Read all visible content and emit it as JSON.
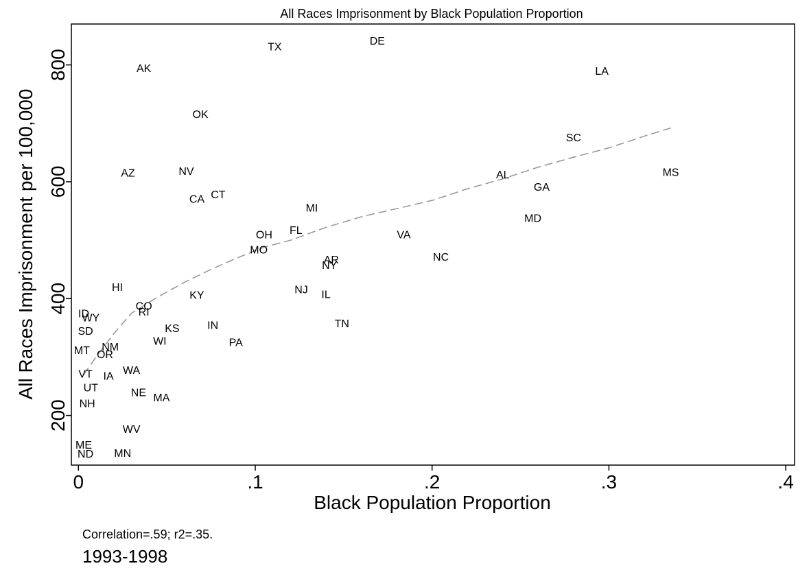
{
  "chart_data": {
    "type": "scatter",
    "title": "All Races Imprisonment by Black Population Proportion",
    "xlabel": "Black Population Proportion",
    "ylabel": "All Races Imprisonment per 100,000",
    "xlim": [
      -0.004,
      0.405
    ],
    "ylim": [
      115,
      870
    ],
    "x_ticks": [
      {
        "value": 0,
        "label": "0"
      },
      {
        "value": 0.1,
        "label": ".1"
      },
      {
        "value": 0.2,
        "label": ".2"
      },
      {
        "value": 0.3,
        "label": ".3"
      },
      {
        "value": 0.4,
        "label": ".4"
      }
    ],
    "y_ticks": [
      {
        "value": 200,
        "label": "200"
      },
      {
        "value": 400,
        "label": "400"
      },
      {
        "value": 600,
        "label": "600"
      },
      {
        "value": 800,
        "label": "800"
      }
    ],
    "grid": false,
    "marker_style": "state abbreviation labels",
    "points": [
      {
        "label": "TX",
        "x": 0.111,
        "y": 832
      },
      {
        "label": "DE",
        "x": 0.169,
        "y": 842
      },
      {
        "label": "AK",
        "x": 0.037,
        "y": 795
      },
      {
        "label": "LA",
        "x": 0.296,
        "y": 790
      },
      {
        "label": "OK",
        "x": 0.069,
        "y": 716
      },
      {
        "label": "SC",
        "x": 0.28,
        "y": 676
      },
      {
        "label": "AZ",
        "x": 0.028,
        "y": 616
      },
      {
        "label": "NV",
        "x": 0.061,
        "y": 619
      },
      {
        "label": "MS",
        "x": 0.335,
        "y": 617
      },
      {
        "label": "AL",
        "x": 0.24,
        "y": 613
      },
      {
        "label": "GA",
        "x": 0.262,
        "y": 592
      },
      {
        "label": "CT",
        "x": 0.079,
        "y": 579
      },
      {
        "label": "CA",
        "x": 0.067,
        "y": 571
      },
      {
        "label": "MI",
        "x": 0.132,
        "y": 556
      },
      {
        "label": "MD",
        "x": 0.257,
        "y": 538
      },
      {
        "label": "FL",
        "x": 0.123,
        "y": 518
      },
      {
        "label": "VA",
        "x": 0.184,
        "y": 510
      },
      {
        "label": "OH",
        "x": 0.105,
        "y": 510
      },
      {
        "label": "MO",
        "x": 0.102,
        "y": 484
      },
      {
        "label": "NC",
        "x": 0.205,
        "y": 472
      },
      {
        "label": "AR",
        "x": 0.143,
        "y": 467
      },
      {
        "label": "NY",
        "x": 0.142,
        "y": 458
      },
      {
        "label": "HI",
        "x": 0.022,
        "y": 420
      },
      {
        "label": "NJ",
        "x": 0.126,
        "y": 416
      },
      {
        "label": "KY",
        "x": 0.067,
        "y": 407
      },
      {
        "label": "IL",
        "x": 0.14,
        "y": 408
      },
      {
        "label": "CO",
        "x": 0.037,
        "y": 388
      },
      {
        "label": "RI",
        "x": 0.037,
        "y": 378
      },
      {
        "label": "ID",
        "x": 0.003,
        "y": 375
      },
      {
        "label": "WY",
        "x": 0.007,
        "y": 368
      },
      {
        "label": "TN",
        "x": 0.149,
        "y": 358
      },
      {
        "label": "IN",
        "x": 0.076,
        "y": 355
      },
      {
        "label": "KS",
        "x": 0.053,
        "y": 350
      },
      {
        "label": "SD",
        "x": 0.004,
        "y": 345
      },
      {
        "label": "WI",
        "x": 0.046,
        "y": 328
      },
      {
        "label": "PA",
        "x": 0.089,
        "y": 326
      },
      {
        "label": "NM",
        "x": 0.018,
        "y": 318
      },
      {
        "label": "MT",
        "x": 0.002,
        "y": 312
      },
      {
        "label": "OR",
        "x": 0.015,
        "y": 305
      },
      {
        "label": "VT",
        "x": 0.004,
        "y": 272
      },
      {
        "label": "WA",
        "x": 0.03,
        "y": 278
      },
      {
        "label": "IA",
        "x": 0.017,
        "y": 268
      },
      {
        "label": "UT",
        "x": 0.007,
        "y": 248
      },
      {
        "label": "NE",
        "x": 0.034,
        "y": 240
      },
      {
        "label": "MA",
        "x": 0.047,
        "y": 231
      },
      {
        "label": "NH",
        "x": 0.005,
        "y": 221
      },
      {
        "label": "WV",
        "x": 0.03,
        "y": 177
      },
      {
        "label": "ME",
        "x": 0.003,
        "y": 150
      },
      {
        "label": "ND",
        "x": 0.004,
        "y": 135
      },
      {
        "label": "MN",
        "x": 0.025,
        "y": 136
      }
    ],
    "series": [
      {
        "style": "dashed",
        "color": "#999999",
        "x": [
          0.003,
          0.01,
          0.02,
          0.03,
          0.045,
          0.06,
          0.075,
          0.09,
          0.105,
          0.12,
          0.14,
          0.16,
          0.18,
          0.2,
          0.22,
          0.24,
          0.26,
          0.28,
          0.3,
          0.32,
          0.336
        ],
        "y": [
          270,
          300,
          340,
          375,
          403,
          428,
          450,
          470,
          488,
          500,
          522,
          540,
          554,
          568,
          588,
          605,
          625,
          642,
          658,
          678,
          693
        ]
      }
    ],
    "annotations": [
      "Correlation=.59; r2=.35.",
      "1993-1998"
    ]
  }
}
